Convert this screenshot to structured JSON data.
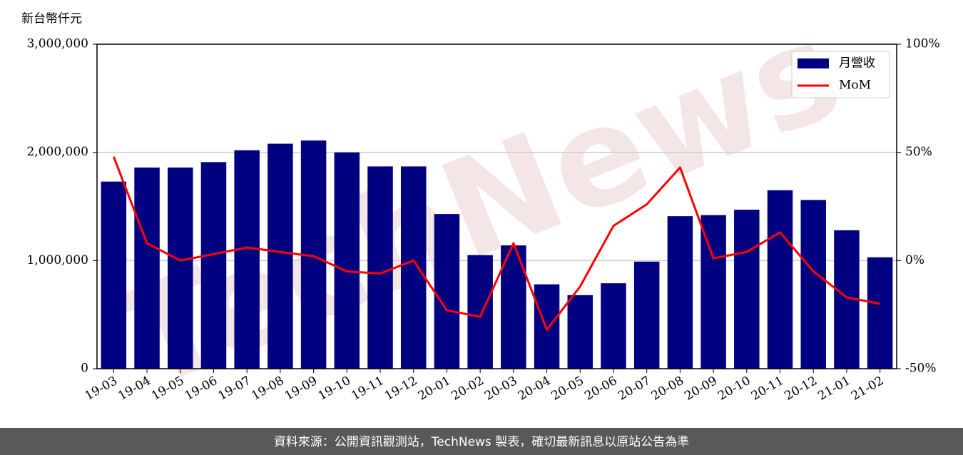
{
  "chart_data": {
    "type": "bar",
    "y_label": "新台幣仟元",
    "watermark": "TechNews",
    "categories": [
      "19-03",
      "19-04",
      "19-05",
      "19-06",
      "19-07",
      "19-08",
      "19-09",
      "19-10",
      "19-11",
      "19-12",
      "20-01",
      "20-02",
      "20-03",
      "20-04",
      "20-05",
      "20-06",
      "20-07",
      "20-08",
      "20-09",
      "20-10",
      "20-11",
      "20-12",
      "21-01",
      "21-02"
    ],
    "series": [
      {
        "name": "月營收",
        "type": "bar",
        "color": "#000080",
        "values": [
          1730000,
          1860000,
          1860000,
          1910000,
          2020000,
          2080000,
          2110000,
          2000000,
          1870000,
          1870000,
          1430000,
          1050000,
          1140000,
          780000,
          680000,
          790000,
          990000,
          1410000,
          1420000,
          1470000,
          1650000,
          1560000,
          1280000,
          1030000
        ]
      },
      {
        "name": "MoM",
        "type": "line",
        "axis": "y2",
        "color": "#ff0000",
        "values": [
          48,
          8,
          0,
          3,
          6,
          4,
          2,
          -5,
          -6,
          0,
          -23,
          -26,
          8,
          -32,
          -12,
          16,
          26,
          43,
          1,
          4,
          13,
          -5,
          -17,
          -20
        ]
      }
    ],
    "ylim": [
      0,
      3000000
    ],
    "yticks": [
      0,
      {
        "value": 1000000,
        "label": "1,000,000"
      },
      {
        "value": 2000000,
        "label": "2,000,000"
      },
      {
        "value": 3000000,
        "label": "3,000,000"
      }
    ],
    "y2lim": [
      -50,
      100
    ],
    "y2ticks": [
      {
        "value": -50,
        "label": "-50%"
      },
      {
        "value": 0,
        "label": "0%"
      },
      {
        "value": 50,
        "label": "50%"
      },
      {
        "value": 100,
        "label": "100%"
      }
    ],
    "grid": true,
    "legend": "upper right"
  },
  "footer": {
    "text": "資料來源：公開資訊觀測站，TechNews 製表，確切最新訊息以原站公告為準"
  }
}
